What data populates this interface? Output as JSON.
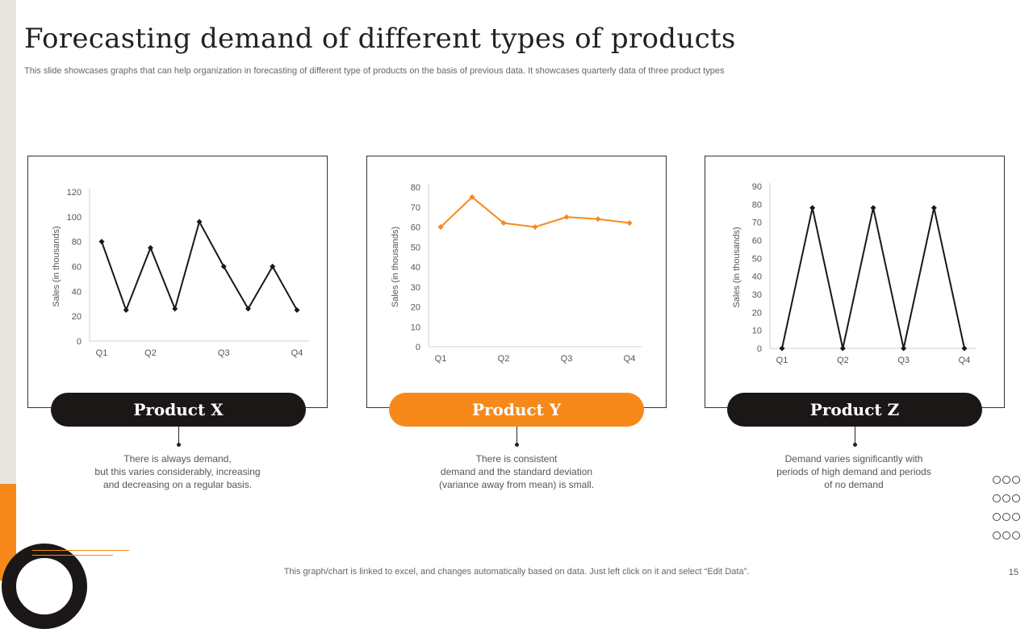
{
  "slide": {
    "title": "Forecasting demand of different types of products",
    "subtitle": "This slide showcases graphs that can help organization in forecasting of different type  of products on the basis of previous data. It showcases quarterly data of three product types",
    "footer": "This graph/chart is linked to excel,  and changes automatically based on data. Just left click on it and select “Edit Data”.",
    "page_number": "15"
  },
  "products": [
    {
      "label": "Product X",
      "description_lines": [
        "There  is always demand,",
        "but this varies considerably, increasing",
        "and decreasing on a regular basis."
      ]
    },
    {
      "label": "Product Y",
      "description_lines": [
        "There  is consistent",
        "demand and the standard deviation",
        "(variance  away from mean) is small."
      ]
    },
    {
      "label": "Product Z",
      "description_lines": [
        "Demand varies significantly with",
        "periods of high demand  and periods",
        "of no demand"
      ]
    }
  ],
  "chart_data": [
    {
      "type": "line",
      "title": "",
      "ylabel": "Sales (in thousands)",
      "xlabel": "",
      "categories": [
        "Q1",
        "",
        "Q2",
        "",
        "",
        "Q3",
        "",
        "",
        "Q4"
      ],
      "x_tick_labels": [
        "Q1",
        "Q2",
        "Q3",
        "Q4"
      ],
      "series": [
        {
          "values": [
            80,
            25,
            75,
            26,
            96,
            60,
            26,
            60,
            25
          ]
        }
      ],
      "ylim": [
        0,
        120
      ],
      "yticks": [
        0,
        20,
        40,
        60,
        80,
        100,
        120
      ],
      "color": "#1c1717",
      "grid": false
    },
    {
      "type": "line",
      "title": "",
      "ylabel": "Sales (in thousands)",
      "xlabel": "",
      "categories": [
        "Q1",
        "",
        "Q2",
        "",
        "Q3",
        "",
        "Q4"
      ],
      "x_tick_labels": [
        "Q1",
        "Q2",
        "Q3",
        "Q4"
      ],
      "series": [
        {
          "values": [
            60,
            75,
            62,
            60,
            65,
            64,
            62
          ]
        }
      ],
      "ylim": [
        0,
        80
      ],
      "yticks": [
        0,
        10,
        20,
        30,
        40,
        50,
        60,
        70,
        80
      ],
      "color": "#f7891b",
      "grid": false
    },
    {
      "type": "line",
      "title": "",
      "ylabel": "Sales (in thousands)",
      "xlabel": "",
      "categories": [
        "Q1",
        "",
        "Q2",
        "",
        "Q3",
        "",
        "Q4"
      ],
      "x_tick_labels": [
        "Q1",
        "Q2",
        "Q3",
        "Q4"
      ],
      "series": [
        {
          "values": [
            0,
            78,
            0,
            78,
            0,
            78,
            0
          ]
        }
      ],
      "ylim": [
        0,
        90
      ],
      "yticks": [
        0,
        10,
        20,
        30,
        40,
        50,
        60,
        70,
        80,
        90
      ],
      "color": "#1c1717",
      "grid": false
    }
  ]
}
